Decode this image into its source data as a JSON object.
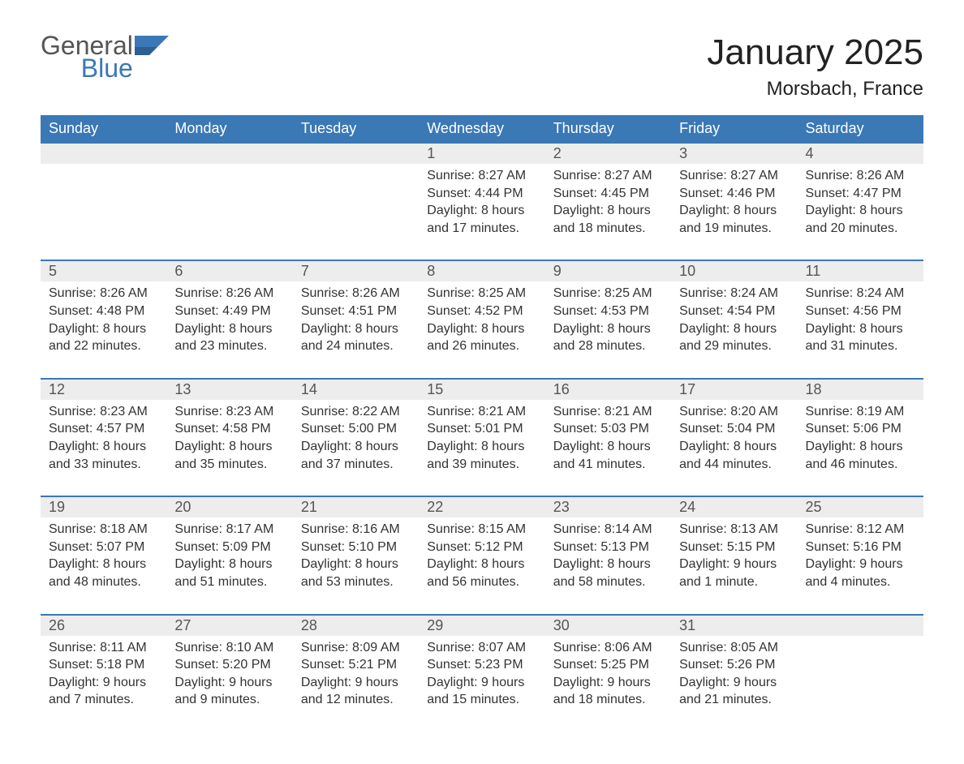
{
  "logo": {
    "general": "General",
    "blue": "Blue"
  },
  "title": "January 2025",
  "location": "Morsbach, France",
  "colors": {
    "header_bg": "#3a78b6",
    "header_text": "#ffffff",
    "daynum_bg": "#ededed",
    "row_border": "#3a78b6",
    "body_text": "#333333"
  },
  "weekdays": [
    "Sunday",
    "Monday",
    "Tuesday",
    "Wednesday",
    "Thursday",
    "Friday",
    "Saturday"
  ],
  "weeks": [
    [
      null,
      null,
      null,
      {
        "n": "1",
        "sr": "Sunrise: 8:27 AM",
        "ss": "Sunset: 4:44 PM",
        "dl": "Daylight: 8 hours and 17 minutes."
      },
      {
        "n": "2",
        "sr": "Sunrise: 8:27 AM",
        "ss": "Sunset: 4:45 PM",
        "dl": "Daylight: 8 hours and 18 minutes."
      },
      {
        "n": "3",
        "sr": "Sunrise: 8:27 AM",
        "ss": "Sunset: 4:46 PM",
        "dl": "Daylight: 8 hours and 19 minutes."
      },
      {
        "n": "4",
        "sr": "Sunrise: 8:26 AM",
        "ss": "Sunset: 4:47 PM",
        "dl": "Daylight: 8 hours and 20 minutes."
      }
    ],
    [
      {
        "n": "5",
        "sr": "Sunrise: 8:26 AM",
        "ss": "Sunset: 4:48 PM",
        "dl": "Daylight: 8 hours and 22 minutes."
      },
      {
        "n": "6",
        "sr": "Sunrise: 8:26 AM",
        "ss": "Sunset: 4:49 PM",
        "dl": "Daylight: 8 hours and 23 minutes."
      },
      {
        "n": "7",
        "sr": "Sunrise: 8:26 AM",
        "ss": "Sunset: 4:51 PM",
        "dl": "Daylight: 8 hours and 24 minutes."
      },
      {
        "n": "8",
        "sr": "Sunrise: 8:25 AM",
        "ss": "Sunset: 4:52 PM",
        "dl": "Daylight: 8 hours and 26 minutes."
      },
      {
        "n": "9",
        "sr": "Sunrise: 8:25 AM",
        "ss": "Sunset: 4:53 PM",
        "dl": "Daylight: 8 hours and 28 minutes."
      },
      {
        "n": "10",
        "sr": "Sunrise: 8:24 AM",
        "ss": "Sunset: 4:54 PM",
        "dl": "Daylight: 8 hours and 29 minutes."
      },
      {
        "n": "11",
        "sr": "Sunrise: 8:24 AM",
        "ss": "Sunset: 4:56 PM",
        "dl": "Daylight: 8 hours and 31 minutes."
      }
    ],
    [
      {
        "n": "12",
        "sr": "Sunrise: 8:23 AM",
        "ss": "Sunset: 4:57 PM",
        "dl": "Daylight: 8 hours and 33 minutes."
      },
      {
        "n": "13",
        "sr": "Sunrise: 8:23 AM",
        "ss": "Sunset: 4:58 PM",
        "dl": "Daylight: 8 hours and 35 minutes."
      },
      {
        "n": "14",
        "sr": "Sunrise: 8:22 AM",
        "ss": "Sunset: 5:00 PM",
        "dl": "Daylight: 8 hours and 37 minutes."
      },
      {
        "n": "15",
        "sr": "Sunrise: 8:21 AM",
        "ss": "Sunset: 5:01 PM",
        "dl": "Daylight: 8 hours and 39 minutes."
      },
      {
        "n": "16",
        "sr": "Sunrise: 8:21 AM",
        "ss": "Sunset: 5:03 PM",
        "dl": "Daylight: 8 hours and 41 minutes."
      },
      {
        "n": "17",
        "sr": "Sunrise: 8:20 AM",
        "ss": "Sunset: 5:04 PM",
        "dl": "Daylight: 8 hours and 44 minutes."
      },
      {
        "n": "18",
        "sr": "Sunrise: 8:19 AM",
        "ss": "Sunset: 5:06 PM",
        "dl": "Daylight: 8 hours and 46 minutes."
      }
    ],
    [
      {
        "n": "19",
        "sr": "Sunrise: 8:18 AM",
        "ss": "Sunset: 5:07 PM",
        "dl": "Daylight: 8 hours and 48 minutes."
      },
      {
        "n": "20",
        "sr": "Sunrise: 8:17 AM",
        "ss": "Sunset: 5:09 PM",
        "dl": "Daylight: 8 hours and 51 minutes."
      },
      {
        "n": "21",
        "sr": "Sunrise: 8:16 AM",
        "ss": "Sunset: 5:10 PM",
        "dl": "Daylight: 8 hours and 53 minutes."
      },
      {
        "n": "22",
        "sr": "Sunrise: 8:15 AM",
        "ss": "Sunset: 5:12 PM",
        "dl": "Daylight: 8 hours and 56 minutes."
      },
      {
        "n": "23",
        "sr": "Sunrise: 8:14 AM",
        "ss": "Sunset: 5:13 PM",
        "dl": "Daylight: 8 hours and 58 minutes."
      },
      {
        "n": "24",
        "sr": "Sunrise: 8:13 AM",
        "ss": "Sunset: 5:15 PM",
        "dl": "Daylight: 9 hours and 1 minute."
      },
      {
        "n": "25",
        "sr": "Sunrise: 8:12 AM",
        "ss": "Sunset: 5:16 PM",
        "dl": "Daylight: 9 hours and 4 minutes."
      }
    ],
    [
      {
        "n": "26",
        "sr": "Sunrise: 8:11 AM",
        "ss": "Sunset: 5:18 PM",
        "dl": "Daylight: 9 hours and 7 minutes."
      },
      {
        "n": "27",
        "sr": "Sunrise: 8:10 AM",
        "ss": "Sunset: 5:20 PM",
        "dl": "Daylight: 9 hours and 9 minutes."
      },
      {
        "n": "28",
        "sr": "Sunrise: 8:09 AM",
        "ss": "Sunset: 5:21 PM",
        "dl": "Daylight: 9 hours and 12 minutes."
      },
      {
        "n": "29",
        "sr": "Sunrise: 8:07 AM",
        "ss": "Sunset: 5:23 PM",
        "dl": "Daylight: 9 hours and 15 minutes."
      },
      {
        "n": "30",
        "sr": "Sunrise: 8:06 AM",
        "ss": "Sunset: 5:25 PM",
        "dl": "Daylight: 9 hours and 18 minutes."
      },
      {
        "n": "31",
        "sr": "Sunrise: 8:05 AM",
        "ss": "Sunset: 5:26 PM",
        "dl": "Daylight: 9 hours and 21 minutes."
      },
      null
    ]
  ]
}
